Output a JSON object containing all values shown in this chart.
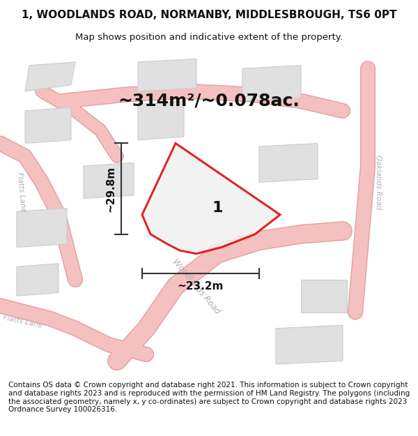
{
  "title_line1": "1, WOODLANDS ROAD, NORMANBY, MIDDLESBROUGH, TS6 0PT",
  "title_line2": "Map shows position and indicative extent of the property.",
  "area_text": "~314m²/~0.078ac.",
  "width_label": "~23.2m",
  "height_label": "~29.8m",
  "plot_number": "1",
  "footer_text": "Contains OS data © Crown copyright and database right 2021. This information is subject to Crown copyright and database rights 2023 and is reproduced with the permission of HM Land Registry. The polygons (including the associated geometry, namely x, y co-ordinates) are subject to Crown copyright and database rights 2023 Ordnance Survey 100026316.",
  "bg_color": "#f5f5f5",
  "map_bg": "#f0f0f0",
  "road_color_light": "#f5c0c0",
  "road_color_outline": "#e8a0a0",
  "building_color": "#e0e0e0",
  "building_outline": "#cccccc",
  "road_label_color": "#b0b0b0",
  "plot_outline_color": "#dd0000",
  "plot_fill_color": "#f5f5f5",
  "dimension_color": "#333333",
  "title_fontsize": 11,
  "subtitle_fontsize": 9.5,
  "area_fontsize": 18,
  "label_fontsize": 11,
  "footer_fontsize": 7.5
}
